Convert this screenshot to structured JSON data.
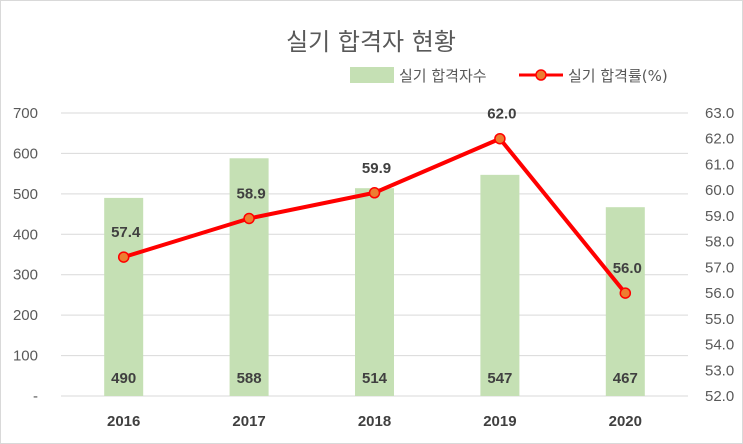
{
  "chart_data": {
    "type": "bar+line",
    "title": "실기 합격자 현황",
    "categories": [
      "2016",
      "2017",
      "2018",
      "2019",
      "2020"
    ],
    "series": [
      {
        "name": "실기 합격자수",
        "type": "bar",
        "axis": "left",
        "values": [
          490,
          588,
          514,
          547,
          467
        ],
        "color": "#c5e0b4"
      },
      {
        "name": "실기 합격률(%)",
        "type": "line",
        "axis": "right",
        "values": [
          57.4,
          58.9,
          59.9,
          62.0,
          56.0
        ],
        "value_labels": [
          "57.4",
          "58.9",
          "59.9",
          "62.0",
          "56.0"
        ],
        "color": "#ff0000",
        "marker_color": "#ed7d31"
      }
    ],
    "y_left": {
      "range": [
        0,
        700
      ],
      "ticks": [
        0,
        100,
        200,
        300,
        400,
        500,
        600,
        700
      ],
      "tick_labels": [
        "-",
        "100",
        "200",
        "300",
        "400",
        "500",
        "600",
        "700"
      ]
    },
    "y_right": {
      "range": [
        52.0,
        63.0
      ],
      "ticks": [
        52,
        53,
        54,
        55,
        56,
        57,
        58,
        59,
        60,
        61,
        62,
        63
      ],
      "tick_labels": [
        "52.0",
        "53.0",
        "54.0",
        "55.0",
        "56.0",
        "57.0",
        "58.0",
        "59.0",
        "60.0",
        "61.0",
        "62.0",
        "63.0"
      ]
    },
    "grid": true,
    "legend_position": "top-right"
  }
}
